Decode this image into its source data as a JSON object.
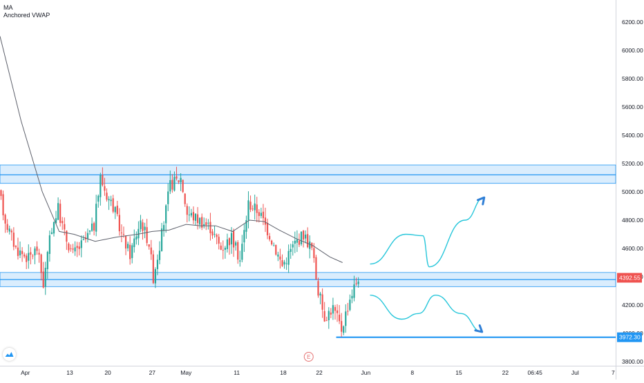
{
  "indicators": [
    "MA",
    "Anchored VWAP"
  ],
  "colors": {
    "up": "#26a69a",
    "down": "#ef5350",
    "zone_fill": "#bbdefb",
    "zone_stroke": "#2196f3",
    "level_line": "#2196f3",
    "ma_line": "#5d606b",
    "projection": "#26c6da",
    "arrow": "#2f7fd6",
    "price_badge": "#ef5350",
    "support_badge": "#2196f3",
    "axis_text": "#131722",
    "event_marker": "#e57373"
  },
  "y_axis": {
    "min": 3800,
    "max": 6350,
    "ticks": [
      "6200.00",
      "6000.00",
      "5800.00",
      "5600.00",
      "5400.00",
      "5200.00",
      "5000.00",
      "4800.00",
      "4600.00",
      "4400.00",
      "4200.00",
      "4000.00",
      "3800.00"
    ]
  },
  "x_axis": {
    "ticks": [
      "Apr",
      "13",
      "20",
      "27",
      "May",
      "11",
      "18",
      "22",
      "Jun",
      "8",
      "15",
      "22",
      "06:45",
      "Jul",
      "7"
    ]
  },
  "price_labels": {
    "current": "4392.55",
    "support": "3972.30"
  },
  "event_marker": "E",
  "chart_data": {
    "type": "candlestick",
    "title": "",
    "candle_count": 170,
    "ohlc_anchors": [
      [
        0,
        5000
      ],
      [
        3,
        4800
      ],
      [
        8,
        4600
      ],
      [
        14,
        4530
      ],
      [
        18,
        4600
      ],
      [
        21,
        4350
      ],
      [
        25,
        4750
      ],
      [
        28,
        4880
      ],
      [
        31,
        4700
      ],
      [
        35,
        4560
      ],
      [
        40,
        4640
      ],
      [
        45,
        4760
      ],
      [
        48,
        5100
      ],
      [
        51,
        4980
      ],
      [
        54,
        4900
      ],
      [
        58,
        4700
      ],
      [
        62,
        4560
      ],
      [
        67,
        4800
      ],
      [
        71,
        4640
      ],
      [
        73,
        4400
      ],
      [
        77,
        4700
      ],
      [
        81,
        5050
      ],
      [
        86,
        5100
      ],
      [
        89,
        4850
      ],
      [
        95,
        4800
      ],
      [
        100,
        4750
      ],
      [
        105,
        4600
      ],
      [
        110,
        4680
      ],
      [
        114,
        4520
      ],
      [
        118,
        4920
      ],
      [
        123,
        4860
      ],
      [
        128,
        4700
      ],
      [
        134,
        4480
      ],
      [
        140,
        4640
      ],
      [
        144,
        4700
      ],
      [
        148,
        4600
      ],
      [
        151,
        4300
      ],
      [
        154,
        4120
      ],
      [
        158,
        4180
      ],
      [
        162,
        4030
      ],
      [
        166,
        4250
      ],
      [
        170,
        4400
      ]
    ],
    "moving_average": [
      [
        0,
        6100
      ],
      [
        10,
        5500
      ],
      [
        20,
        5000
      ],
      [
        28,
        4720
      ],
      [
        35,
        4700
      ],
      [
        45,
        4650
      ],
      [
        55,
        4680
      ],
      [
        65,
        4700
      ],
      [
        72,
        4720
      ],
      [
        80,
        4730
      ],
      [
        88,
        4770
      ],
      [
        95,
        4760
      ],
      [
        102,
        4760
      ],
      [
        110,
        4720
      ],
      [
        118,
        4800
      ],
      [
        125,
        4790
      ],
      [
        132,
        4730
      ],
      [
        140,
        4670
      ],
      [
        148,
        4620
      ],
      [
        156,
        4540
      ],
      [
        162,
        4500
      ]
    ],
    "resistance_zone": {
      "low": 5060,
      "high": 5190,
      "line": 5120
    },
    "support_zone": {
      "low": 4330,
      "high": 4430,
      "line": 4380
    },
    "support_level": 3972.3,
    "current_price": 4392.55,
    "projections": [
      {
        "name": "",
        "points": [
          [
            175,
            4490
          ],
          [
            192,
            4700
          ],
          [
            200,
            4690
          ],
          [
            203,
            4470
          ],
          [
            220,
            4800
          ],
          [
            229,
            4960
          ]
        ],
        "arrow": "up"
      },
      {
        "name": "",
        "points": [
          [
            175,
            4270
          ],
          [
            190,
            4100
          ],
          [
            198,
            4140
          ],
          [
            206,
            4270
          ],
          [
            218,
            4140
          ],
          [
            228,
            4010
          ]
        ],
        "arrow": "down"
      }
    ],
    "x_ticks_at_index": [
      [
        "Apr",
        12
      ],
      [
        "13",
        33
      ],
      [
        "20",
        51
      ],
      [
        "27",
        72
      ],
      [
        "May",
        88
      ],
      [
        "11",
        112
      ],
      [
        "18",
        134
      ],
      [
        "22",
        151
      ],
      [
        "Jun",
        173
      ],
      [
        "8",
        195
      ],
      [
        "15",
        217
      ],
      [
        "22",
        239
      ],
      [
        "06:45",
        253
      ],
      [
        "Jul",
        272
      ],
      [
        "7",
        290
      ]
    ],
    "x_range": [
      0,
      294
    ],
    "ylim": [
      3800,
      6350
    ],
    "grid": false,
    "legend": "none"
  }
}
